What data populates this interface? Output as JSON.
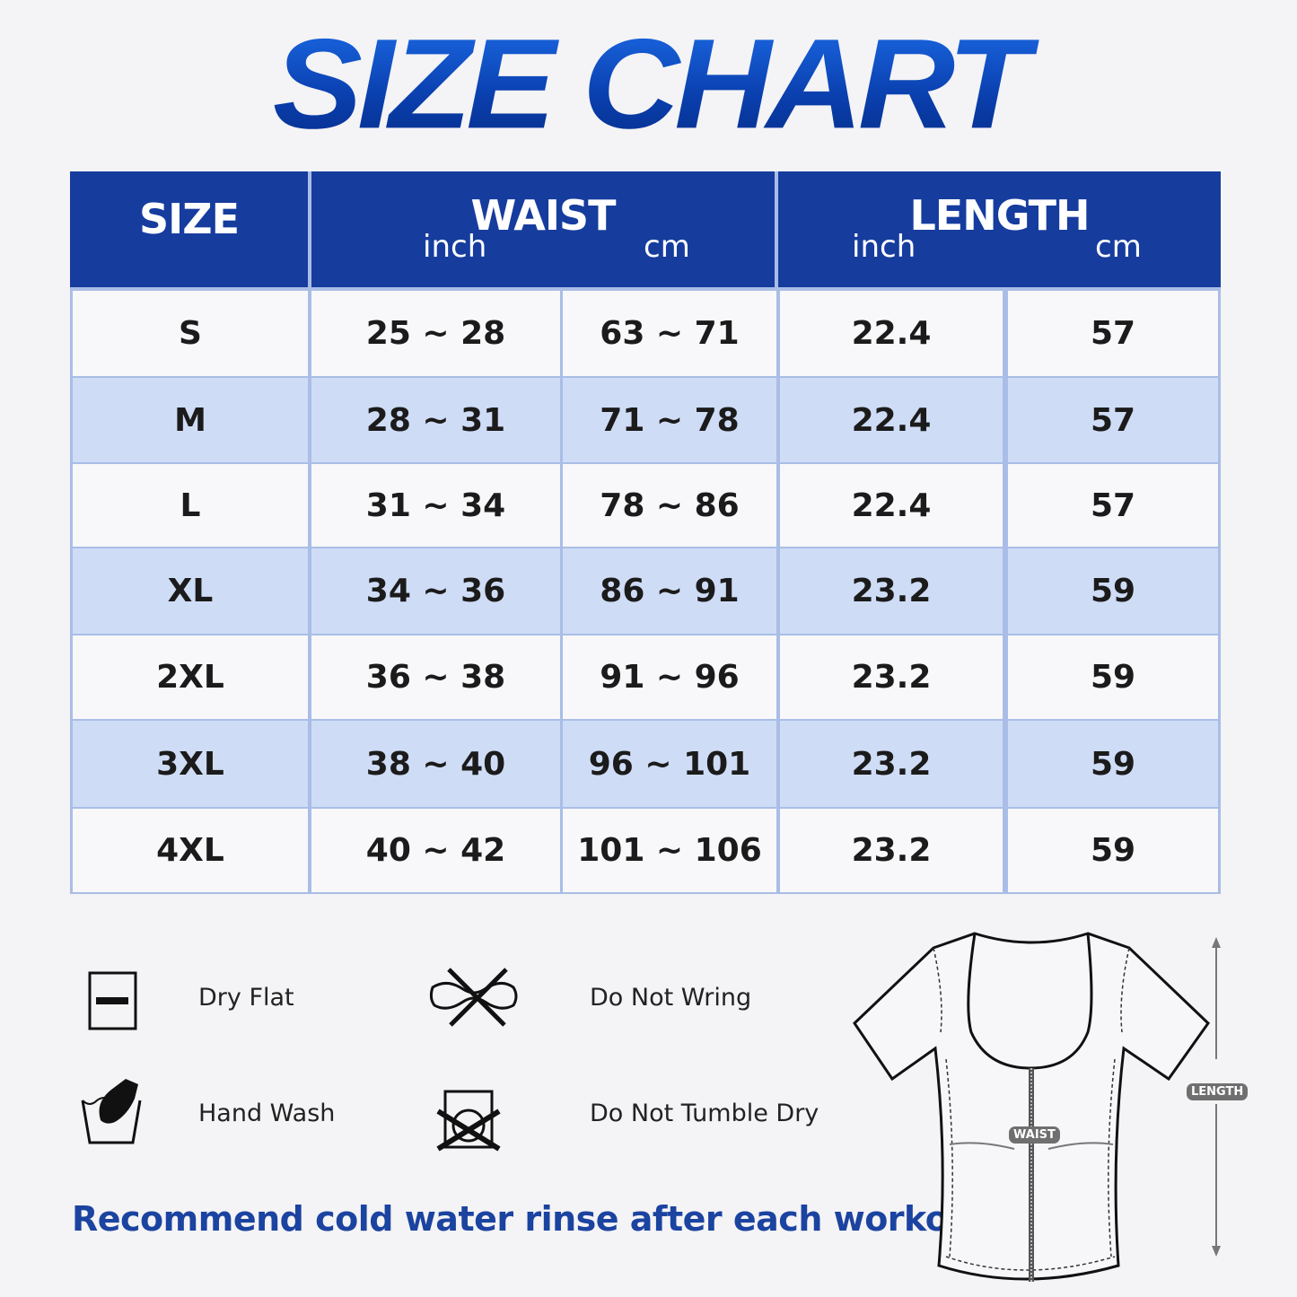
{
  "title": "SIZE CHART",
  "table": {
    "headers": {
      "size": "SIZE",
      "waist": "WAIST",
      "waist_units": [
        "inch",
        "cm"
      ],
      "length": "LENGTH",
      "length_units": [
        "inch",
        "cm"
      ]
    },
    "rows": [
      [
        "S",
        "25 ~ 28",
        "63 ~ 71",
        "22.4",
        "57"
      ],
      [
        "M",
        "28 ~ 31",
        "71 ~ 78",
        "22.4",
        "57"
      ],
      [
        "L",
        "31 ~ 34",
        "78 ~ 86",
        "22.4",
        "57"
      ],
      [
        "XL",
        "34 ~ 36",
        "86 ~ 91",
        "23.2",
        "59"
      ],
      [
        "2XL",
        "36 ~ 38",
        "91 ~ 96",
        "23.2",
        "59"
      ],
      [
        "3XL",
        "38 ~ 40",
        "96 ~ 101",
        "23.2",
        "59"
      ],
      [
        "4XL",
        "40 ~ 42",
        "101 ~ 106",
        "23.2",
        "59"
      ]
    ]
  },
  "care": [
    {
      "label": "Dry Flat",
      "icon": "dry-flat-icon"
    },
    {
      "label": "Do Not Wring",
      "icon": "do-not-wring-icon"
    },
    {
      "label": "Hand Wash",
      "icon": "hand-wash-icon"
    },
    {
      "label": "Do Not Tumble Dry",
      "icon": "do-not-tumble-dry-icon"
    }
  ],
  "recommendation": "Recommend cold water rinse after each workout.",
  "diagram": {
    "waist_label": "WAIST",
    "length_label": "LENGTH"
  },
  "colors": {
    "header": "#163c9e",
    "alt_row": "#cfdcf6",
    "white_row": "#f8f8fa",
    "border": "#a9bde6",
    "accent_text": "#1b43a0"
  }
}
